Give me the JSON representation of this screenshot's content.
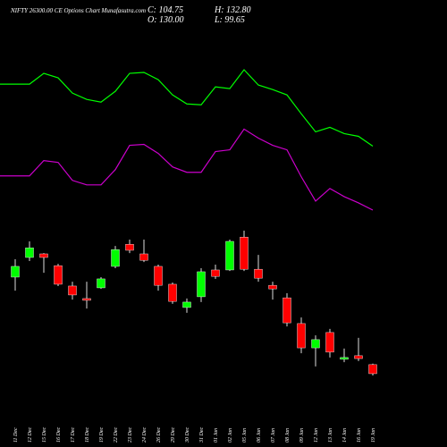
{
  "chart_data": {
    "type": "candlestick",
    "title": "NIFTY 26300.00 CE Options Chart Munafasutra.com",
    "readout": [
      "C: 104.75",
      "H: 132.80",
      "O: 130.00",
      "L: 99.65"
    ],
    "up_color": "#00ff00",
    "down_color": "#ff0000",
    "categories": [
      "11 Dec",
      "12 Dec",
      "15 Dec",
      "16 Dec",
      "17 Dec",
      "18 Dec",
      "19 Dec",
      "22 Dec",
      "23 Dec",
      "24 Dec",
      "26 Dec",
      "29 Dec",
      "30 Dec",
      "31 Dec",
      "01 Jan",
      "02 Jan",
      "05 Jan",
      "06 Jan",
      "07 Jan",
      "08 Jan",
      "09 Jan",
      "12 Jan",
      "13 Jan",
      "14 Jan",
      "16 Jan",
      "19 Jan"
    ],
    "open": [
      375,
      430,
      440,
      407,
      350,
      315,
      345,
      405,
      467,
      440,
      405,
      355,
      290,
      320,
      395,
      395,
      487,
      397,
      352,
      317,
      245,
      177,
      220,
      145,
      155,
      130.0
    ],
    "high": [
      425,
      475,
      442,
      412,
      362,
      362,
      375,
      462,
      480,
      480,
      410,
      360,
      315,
      400,
      410,
      480,
      505,
      437,
      362,
      330,
      262,
      212,
      230,
      175,
      205,
      132.8
    ],
    "low": [
      337,
      420,
      387,
      350,
      312,
      287,
      342,
      400,
      442,
      417,
      337,
      300,
      275,
      305,
      370,
      392,
      392,
      362,
      312,
      237,
      162,
      125,
      150,
      137,
      140,
      99.65
    ],
    "close": [
      405,
      457,
      430,
      355,
      325,
      310,
      370,
      452,
      450,
      422,
      352,
      307,
      305,
      390,
      377,
      475,
      397,
      372,
      342,
      247,
      177,
      200,
      165,
      150,
      147,
      104.75
    ],
    "overlays": [
      {
        "type": "line",
        "color": "#00ff00",
        "values": [
          405,
          405,
          417,
          412,
          395,
          388,
          385,
          397,
          417,
          418,
          410,
          393,
          383,
          382,
          402,
          400,
          421,
          404,
          399,
          393,
          372,
          352,
          357,
          350,
          347,
          336
        ]
      },
      {
        "type": "line",
        "color": "#cc00cc",
        "values": [
          303,
          303,
          320,
          318,
          298,
          293,
          293,
          310,
          337,
          338,
          328,
          313,
          307,
          307,
          330,
          332,
          355,
          345,
          337,
          332,
          302,
          275,
          289,
          280,
          273,
          265
        ]
      }
    ]
  }
}
